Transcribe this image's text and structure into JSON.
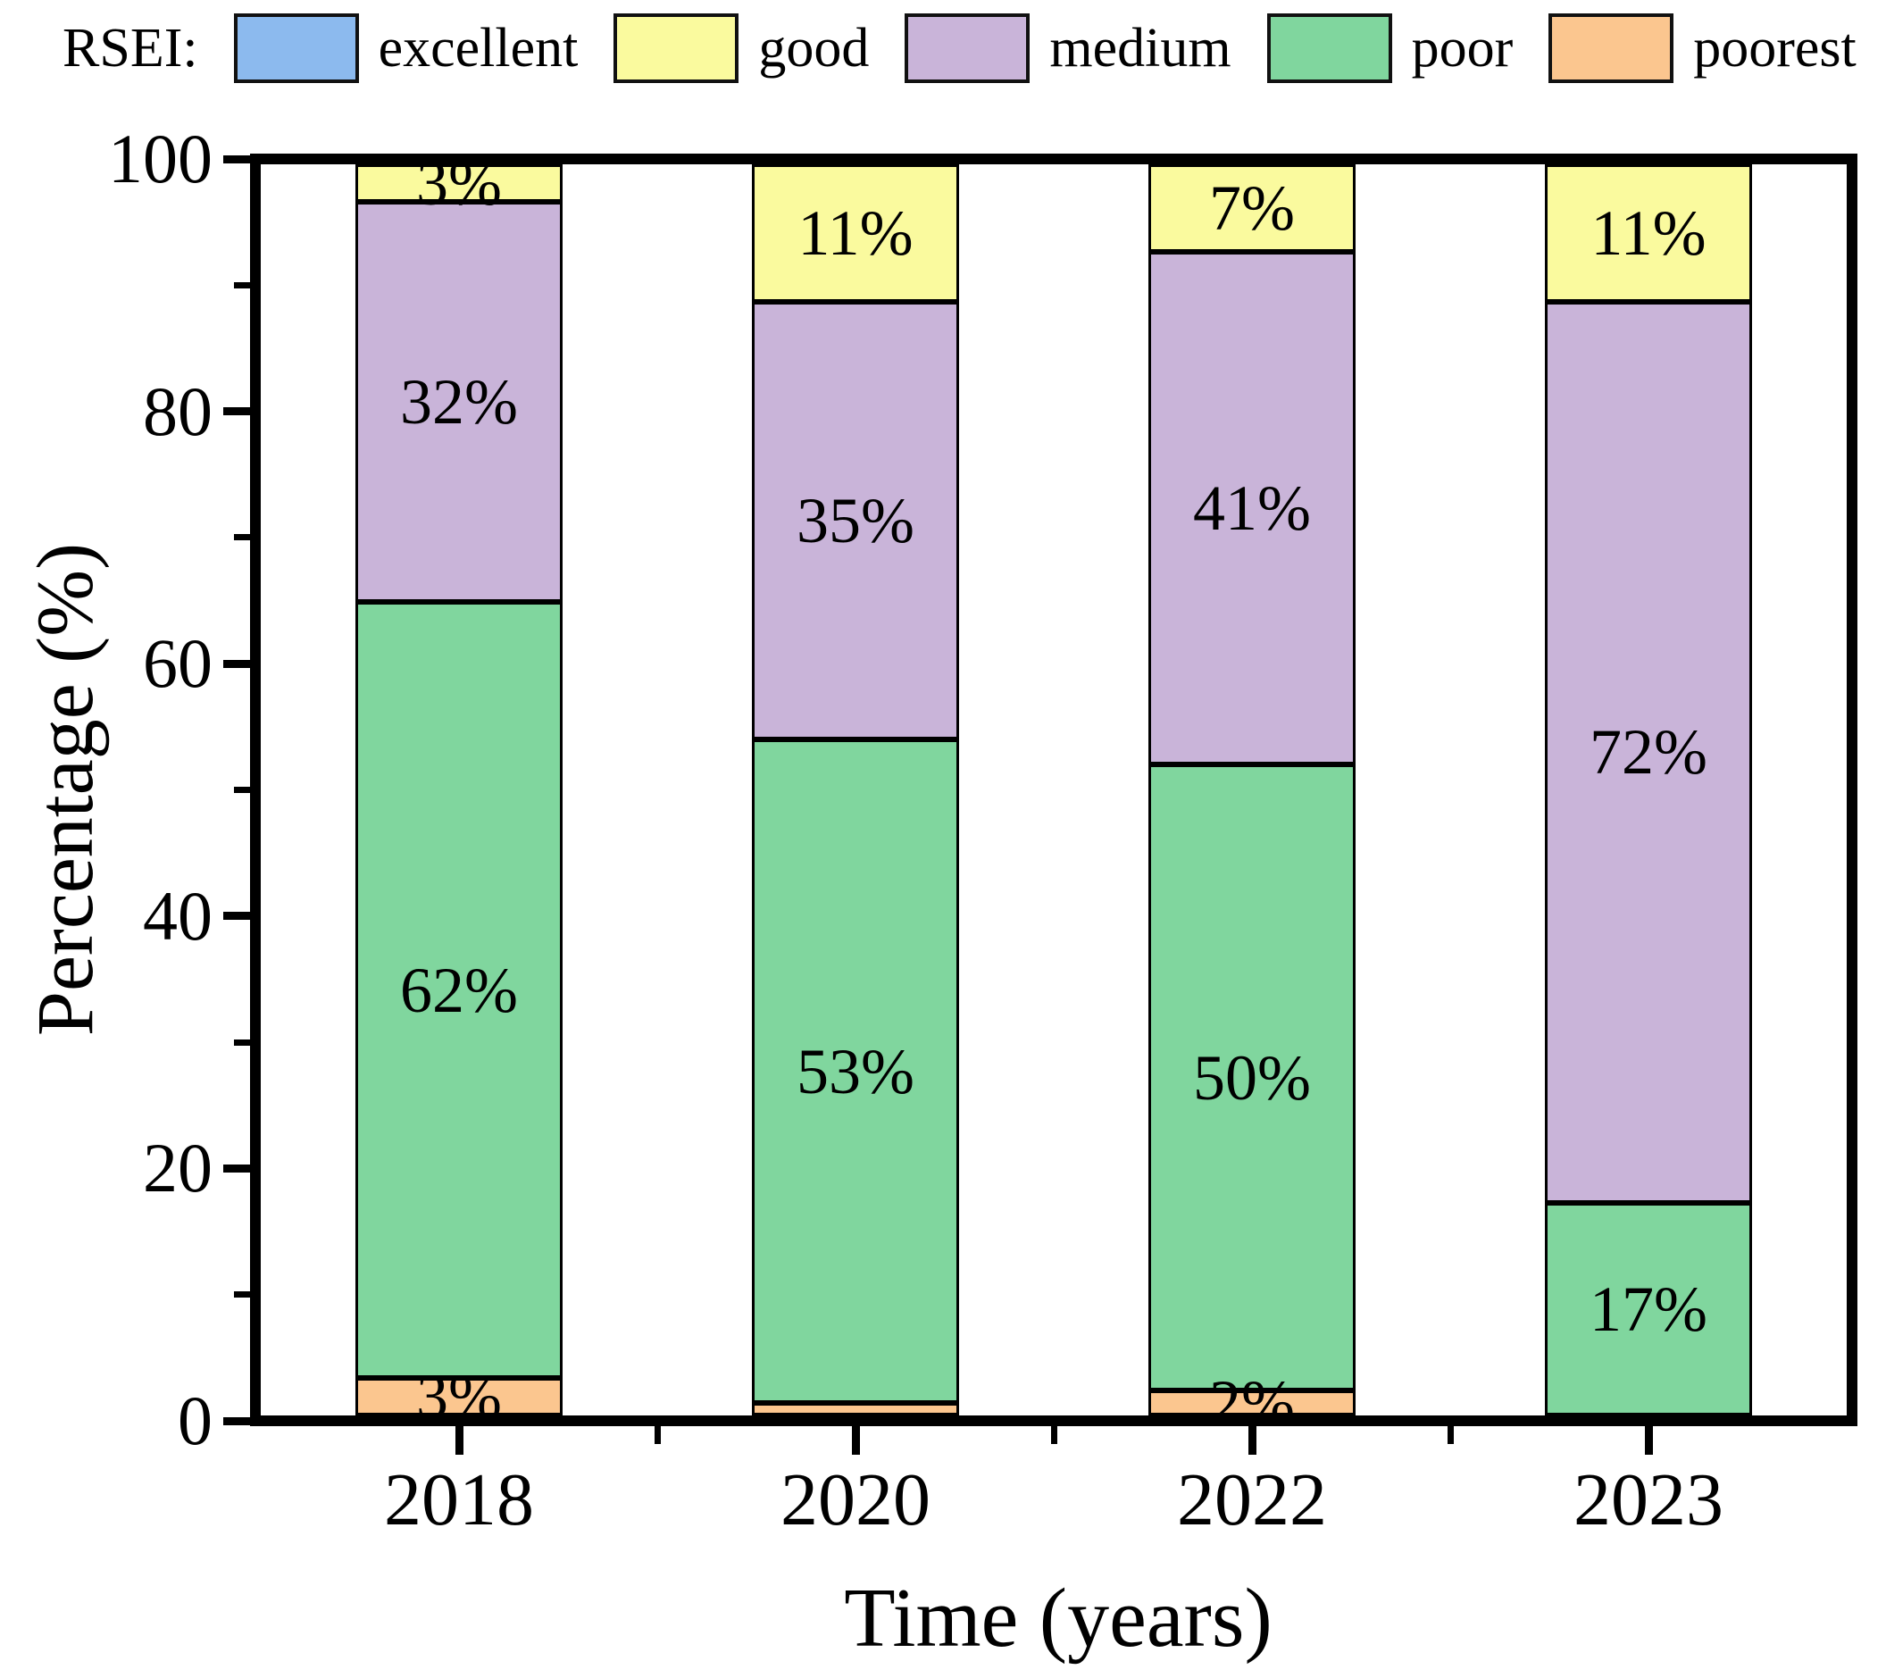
{
  "legend": {
    "title": "RSEI:",
    "items": [
      {
        "label": "excellent",
        "color": "#8cbaee"
      },
      {
        "label": "good",
        "color": "#fafa9e"
      },
      {
        "label": "medium",
        "color": "#c9b4d9"
      },
      {
        "label": "poor",
        "color": "#80d69e"
      },
      {
        "label": "poorest",
        "color": "#fbc68f"
      }
    ]
  },
  "chart_data": {
    "type": "bar",
    "stacked": true,
    "title": "",
    "xlabel": "Time (years)",
    "ylabel": "Percentage (%)",
    "categories": [
      "2018",
      "2020",
      "2022",
      "2023"
    ],
    "series": [
      {
        "name": "poorest",
        "color": "#fbc68f",
        "values": [
          3,
          1,
          2,
          0
        ],
        "labels": [
          "3%",
          "",
          "2%",
          ""
        ]
      },
      {
        "name": "poor",
        "color": "#80d69e",
        "values": [
          62,
          53,
          50,
          17
        ],
        "labels": [
          "62%",
          "53%",
          "50%",
          "17%"
        ]
      },
      {
        "name": "medium",
        "color": "#c9b4d9",
        "values": [
          32,
          35,
          41,
          72
        ],
        "labels": [
          "32%",
          "35%",
          "41%",
          "72%"
        ]
      },
      {
        "name": "good",
        "color": "#fafa9e",
        "values": [
          3,
          11,
          7,
          11
        ],
        "labels": [
          "3%",
          "11%",
          "7%",
          "11%"
        ]
      },
      {
        "name": "excellent",
        "color": "#8cbaee",
        "values": [
          0,
          0,
          0,
          0
        ],
        "labels": [
          "",
          "",
          "",
          ""
        ]
      }
    ],
    "ylim": [
      0,
      100
    ],
    "yticks": [
      0,
      20,
      40,
      60,
      80,
      100
    ],
    "yminorticks": [
      10,
      30,
      50,
      70,
      90
    ],
    "grid": false,
    "legend_position": "top"
  }
}
